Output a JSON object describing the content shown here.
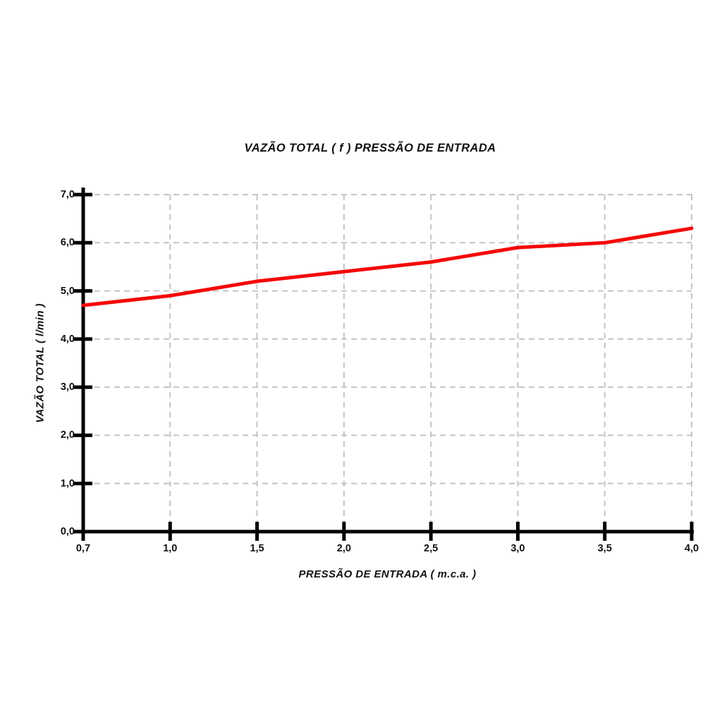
{
  "chart_data": {
    "type": "line",
    "title": "VAZÃO TOTAL ( f ) PRESSÃO DE ENTRADA",
    "xlabel": "PRESSÃO DE ENTRADA ( m.c.a. )",
    "ylabel": "VAZÃO TOTAL ( l/min )",
    "categories": [
      "0,7",
      "1,0",
      "1,5",
      "2,0",
      "2,5",
      "3,0",
      "3,5",
      "4,0"
    ],
    "x_values": [
      0.7,
      1.0,
      1.5,
      2.0,
      2.5,
      3.0,
      3.5,
      4.0
    ],
    "x_spacing": "even-categorical",
    "series": [
      {
        "name": "VAZÃO TOTAL",
        "color": "#f50707",
        "values": [
          4.7,
          4.9,
          5.2,
          5.4,
          5.6,
          5.9,
          6.0,
          6.3
        ]
      }
    ],
    "y_tick_labels": [
      "0,0",
      "1,0",
      "2,0",
      "3,0",
      "4,0",
      "5,0",
      "6,0",
      "7,0"
    ],
    "y_tick_values": [
      0,
      1,
      2,
      3,
      4,
      5,
      6,
      7
    ],
    "ylim": [
      0,
      7
    ],
    "grid": "dashed",
    "grid_color": "#c4c4c4",
    "axis_color": "#000000",
    "background_color": "#ffffff",
    "legend": "none"
  }
}
